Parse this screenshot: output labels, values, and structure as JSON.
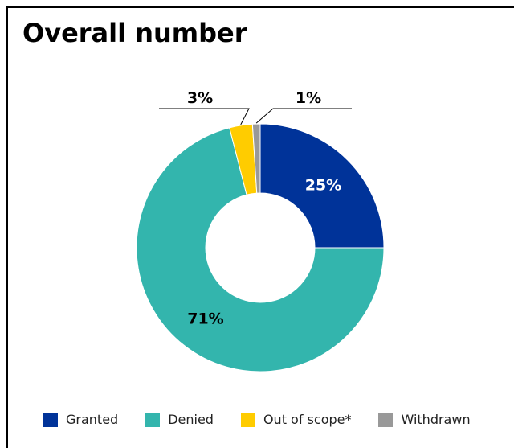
{
  "chart_data": {
    "type": "pie",
    "variant": "donut",
    "title": "Overall number",
    "categories": [
      "Granted",
      "Denied",
      "Out of scope*",
      "Withdrawn"
    ],
    "values": [
      25,
      71,
      3,
      1
    ],
    "data_labels": [
      "25%",
      "71%",
      "3%",
      "1%"
    ],
    "colors": [
      "#003399",
      "#33B5AD",
      "#FFCC00",
      "#999999"
    ],
    "legend_placement": "bottom"
  }
}
